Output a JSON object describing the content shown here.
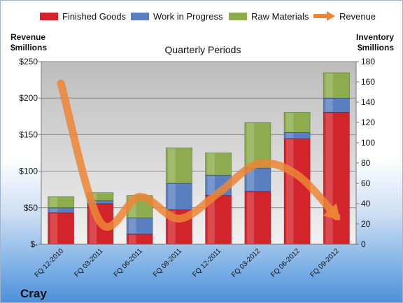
{
  "company": "Cray",
  "colors": {
    "finished": "#d3232b",
    "wip": "#5a7fc0",
    "raw": "#8dac4e",
    "revenue": "#ec8535"
  },
  "chart_data": {
    "type": "bar",
    "stacked": true,
    "title": "Quarterly Periods",
    "left_axis_label": [
      "Revenue",
      "$millions"
    ],
    "right_axis_label": [
      "Inventory",
      "$millions"
    ],
    "categories": [
      "FQ 12-2010",
      "FQ 03-2011",
      "FQ 06-2011",
      "FQ 09-2011",
      "FQ 12-2011",
      "FQ 03-2012",
      "FQ 06-2012",
      "FQ 09-2012"
    ],
    "left_ticks": [
      "$-",
      "$50",
      "$100",
      "$150",
      "$200",
      "$250"
    ],
    "right_ticks": [
      "0",
      "20",
      "40",
      "60",
      "80",
      "100",
      "120",
      "140",
      "160",
      "180"
    ],
    "ylim_left": [
      0,
      250
    ],
    "ylim_right": [
      0,
      180
    ],
    "series": [
      {
        "name": "Finished Goods",
        "axis": "right",
        "kind": "bar",
        "values": [
          31,
          40,
          10,
          34,
          48,
          52,
          104,
          130
        ]
      },
      {
        "name": "Work in Progress",
        "axis": "right",
        "kind": "bar",
        "values": [
          5,
          3,
          16,
          26,
          20,
          23,
          6,
          14
        ]
      },
      {
        "name": "Raw Materials",
        "axis": "right",
        "kind": "bar",
        "values": [
          11,
          8,
          22,
          35,
          22,
          45,
          20,
          25
        ]
      },
      {
        "name": "Revenue",
        "axis": "left",
        "kind": "line",
        "values": [
          220,
          30,
          65,
          35,
          70,
          110,
          95,
          38
        ]
      }
    ],
    "legend_position": "top"
  }
}
